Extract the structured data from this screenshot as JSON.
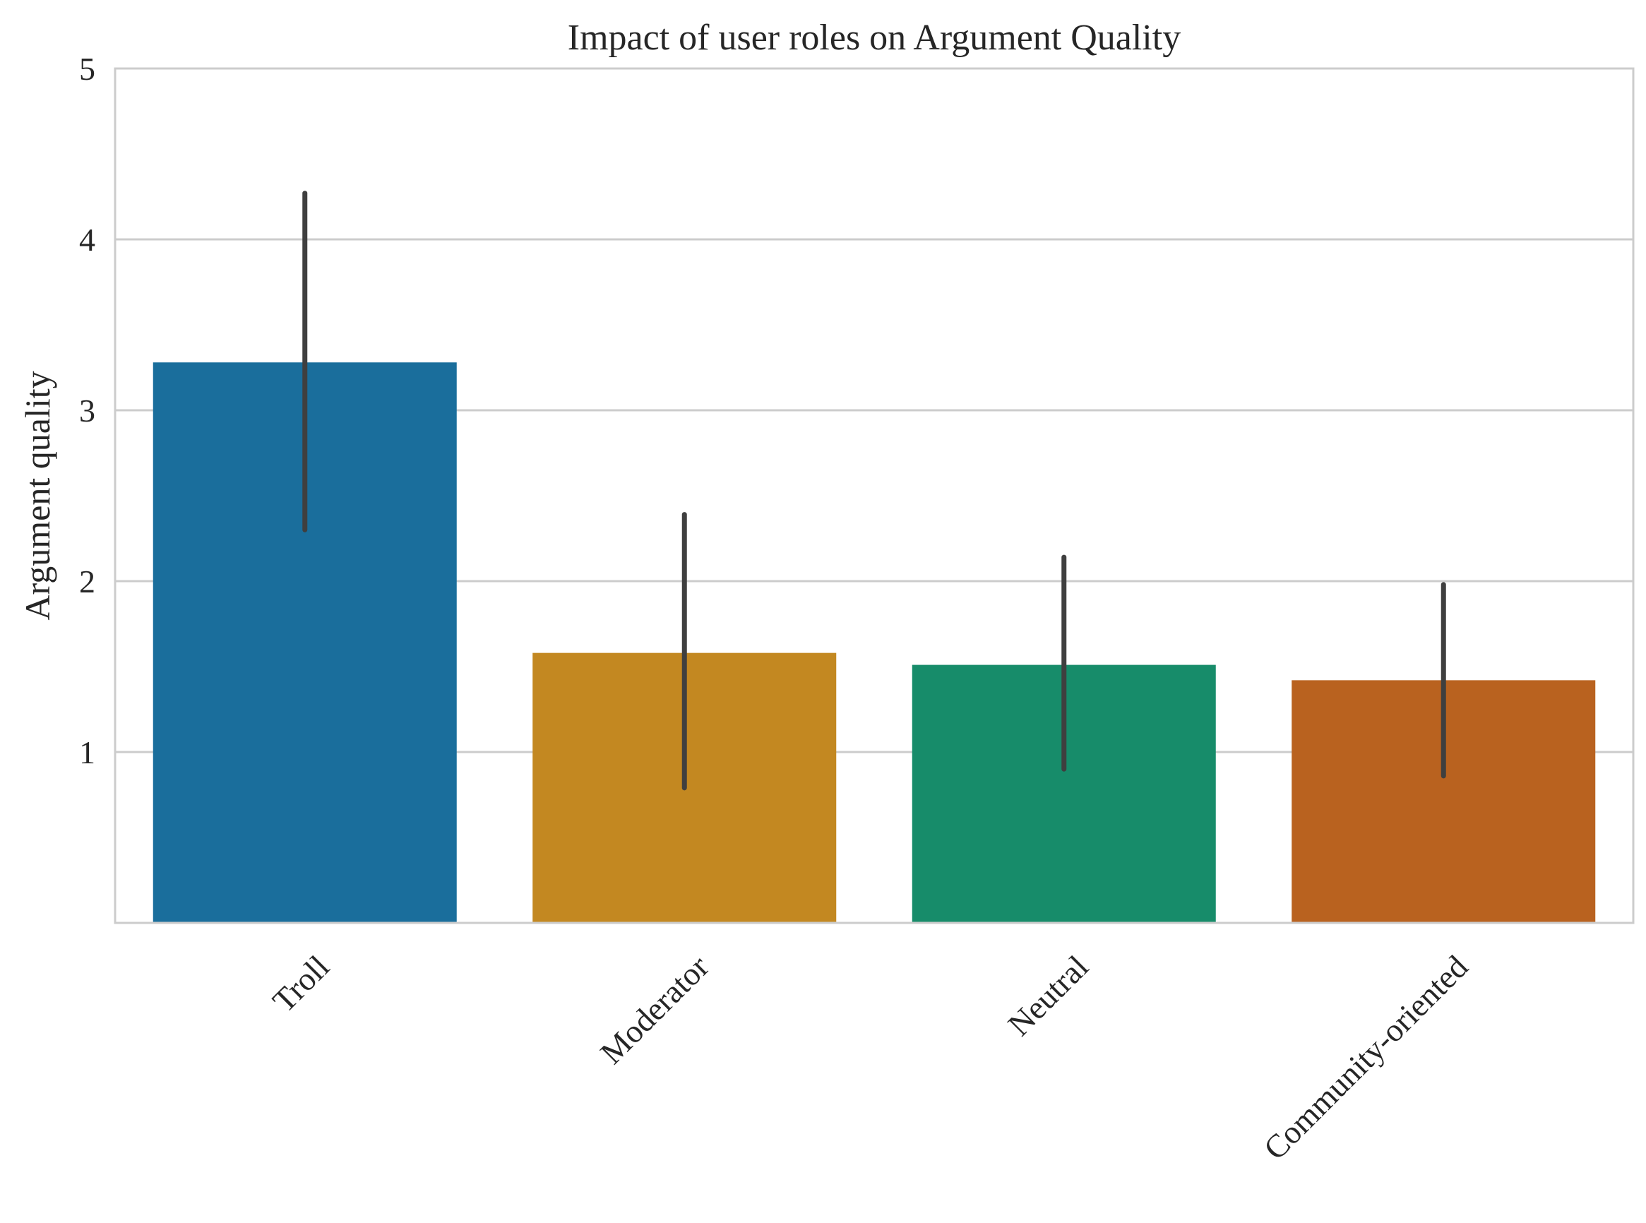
{
  "chart_data": {
    "type": "bar",
    "title": "Impact of user roles on Argument Quality",
    "xlabel": "",
    "ylabel": "Argument quality",
    "categories": [
      "Troll",
      "Moderator",
      "Neutral",
      "Community-oriented"
    ],
    "values": [
      3.28,
      1.58,
      1.51,
      1.42
    ],
    "error_bars": [
      {
        "low": 2.3,
        "high": 4.27
      },
      {
        "low": 0.79,
        "high": 2.39
      },
      {
        "low": 0.9,
        "high": 2.14
      },
      {
        "low": 0.86,
        "high": 1.98
      }
    ],
    "colors": [
      "#1a6e9c",
      "#c38821",
      "#178c6a",
      "#b9621f"
    ],
    "error_bar_color": "#3f3f3f",
    "ylim": [
      0,
      5
    ],
    "yticks": [
      1,
      2,
      3,
      4,
      5
    ],
    "grid": "horizontal",
    "xtick_rotation": 45
  }
}
